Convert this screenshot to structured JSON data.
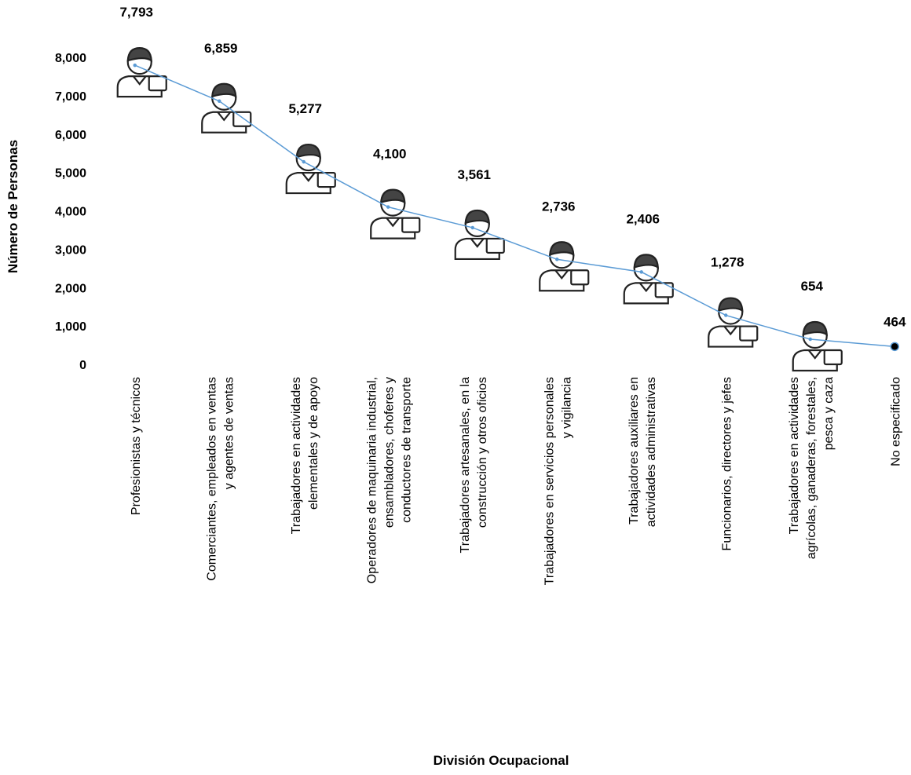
{
  "chart_data": {
    "type": "line",
    "x_label": "División Ocupacional",
    "y_label": "Número de Personas",
    "categories": [
      "Profesionistas y técnicos",
      "Comerciantes, empleados en ventas y agentes de ventas",
      "Trabajadores en actividades elementales y de apoyo",
      "Operadores de maquinaria industrial, ensambladores, choferes y conductores de transporte",
      "Trabajadores artesanales, en la construcción y otros oficios",
      "Trabajadores en servicios personales y vigilancia",
      "Trabajadores auxiliares en actividades administrativas",
      "Funcionarios, directores y jefes",
      "Trabajadores en actividades agrícolas, ganaderas, forestales, pesca y caza",
      "No especificado"
    ],
    "values": [
      7793,
      6859,
      5277,
      4100,
      3561,
      2736,
      2406,
      1278,
      654,
      464
    ],
    "value_labels": [
      "7,793",
      "6,859",
      "5,277",
      "4,100",
      "3,561",
      "2,736",
      "2,406",
      "1,278",
      "654",
      "464"
    ],
    "color": "#5b9bd5",
    "ylim": [
      0,
      8000
    ],
    "yticks": [
      0,
      {
        "value": 1000,
        "label": "1,000"
      },
      {
        "value": 2000,
        "label": "2,000"
      },
      {
        "value": 3000,
        "label": "3,000"
      },
      {
        "value": 4000,
        "label": "4,000"
      },
      {
        "value": 5000,
        "label": "5,000"
      },
      {
        "value": 6000,
        "label": "6,000"
      },
      {
        "value": 7000,
        "label": "7,000"
      },
      {
        "value": 8000,
        "label": "8,000"
      }
    ],
    "grid": false
  }
}
